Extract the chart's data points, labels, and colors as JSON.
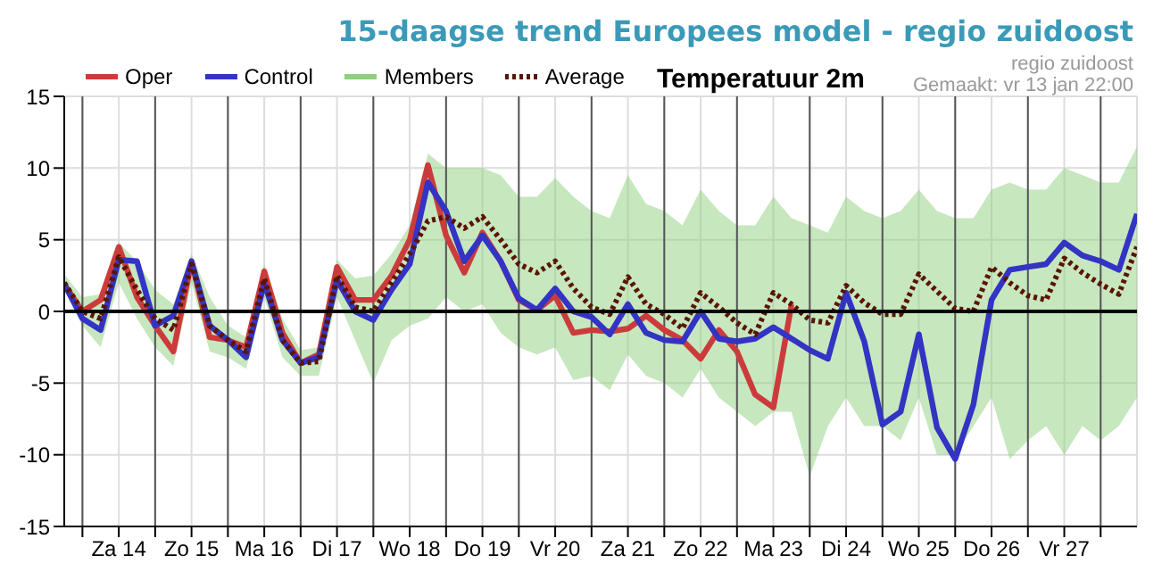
{
  "chart_data": {
    "type": "line",
    "title": "15-daagse trend Europees model - regio zuidoost",
    "subtitle": "Temperatuur 2m",
    "annotations": [
      "regio zuidoost",
      "Gemaakt: vr 13 jan 22:00"
    ],
    "x": [
      "--01-13T18:00",
      "--01-14T00:00",
      "--01-14T06:00",
      "--01-14T12:00",
      "--01-14T18:00",
      "--01-15T00:00",
      "--01-15T06:00",
      "--01-15T12:00",
      "--01-15T18:00",
      "--01-16T00:00",
      "--01-16T06:00",
      "--01-16T12:00",
      "--01-16T18:00",
      "--01-17T00:00",
      "--01-17T06:00",
      "--01-17T12:00",
      "--01-17T18:00",
      "--01-18T00:00",
      "--01-18T06:00",
      "--01-18T12:00",
      "--01-18T18:00",
      "--01-19T00:00",
      "--01-19T06:00",
      "--01-19T12:00",
      "--01-19T18:00",
      "--01-20T00:00",
      "--01-20T06:00",
      "--01-20T12:00",
      "--01-20T18:00",
      "--01-21T00:00",
      "--01-21T06:00",
      "--01-21T12:00",
      "--01-21T18:00",
      "--01-22T00:00",
      "--01-22T06:00",
      "--01-22T12:00",
      "--01-22T18:00",
      "--01-23T00:00",
      "--01-23T06:00",
      "--01-23T12:00",
      "--01-23T18:00",
      "--01-24T00:00",
      "--01-24T06:00",
      "--01-24T12:00",
      "--01-24T18:00",
      "--01-25T00:00",
      "--01-25T06:00",
      "--01-25T12:00",
      "--01-25T18:00",
      "--01-26T00:00",
      "--01-26T06:00",
      "--01-26T12:00",
      "--01-26T18:00",
      "--01-27T00:00",
      "--01-27T06:00",
      "--01-27T12:00",
      "--01-27T18:00",
      "--01-28T00:00",
      "--01-28T06:00",
      "--01-28T12:00"
    ],
    "series": [
      {
        "name": "Oper",
        "color": "#cc3b3b",
        "values": [
          1.9,
          0,
          0.8,
          4.5,
          1,
          -1,
          -2.8,
          3.5,
          -1.8,
          -2,
          -2.5,
          2.8,
          -1.5,
          -3.6,
          -3,
          3.1,
          0.8,
          0.8,
          2.5,
          5,
          10.2,
          5.3,
          2.7,
          5.5,
          3.5,
          0.8,
          0.1,
          1.1,
          -1.5,
          -1.3,
          -1.4,
          -1.2,
          -0.3,
          -1.3,
          -2,
          -3.3,
          -1.3,
          -2.8,
          -5.8,
          -6.7,
          0.5,
          null,
          null,
          null,
          null,
          null,
          null,
          null,
          null,
          null,
          null,
          null,
          null,
          null,
          null,
          null,
          null,
          null,
          null,
          null
        ]
      },
      {
        "name": "Control",
        "color": "#3333c4",
        "values": [
          1.9,
          -0.5,
          -1.3,
          3.6,
          3.5,
          -1,
          -0.3,
          3.5,
          -1,
          -2,
          -3.2,
          2,
          -2,
          -3.6,
          -3.2,
          2.2,
          0,
          -0.6,
          1.5,
          3.3,
          9,
          7,
          3.5,
          5.3,
          3.5,
          0.9,
          0.1,
          1.6,
          0,
          -0.4,
          -1.6,
          0.5,
          -1.5,
          -2,
          -2.1,
          0,
          -1.9,
          -2.1,
          -1.9,
          -1.1,
          -1.9,
          -2.7,
          -3.3,
          1.3,
          -2.1,
          -7.9,
          -7,
          -1.6,
          -8.1,
          -10.3,
          -6.5,
          0.8,
          2.9,
          3.1,
          3.3,
          4.8,
          3.9,
          3.5,
          2.9,
          6.8
        ]
      },
      {
        "name": "Members",
        "color": "#8fcf7f",
        "values": [
          null,
          null,
          null,
          null,
          null,
          null,
          null,
          null,
          null,
          null,
          null,
          null,
          null,
          null,
          null,
          null,
          null,
          null,
          null,
          null,
          null,
          null,
          null,
          null,
          null,
          null,
          null,
          null,
          null,
          null,
          null,
          null,
          null,
          null,
          null,
          null,
          null,
          null,
          null,
          null,
          null,
          null,
          null,
          null,
          null,
          null,
          null,
          null,
          null,
          null,
          null,
          null,
          null,
          null,
          null,
          null,
          null,
          null,
          null,
          null
        ],
        "lower": [
          1.5,
          -1,
          -2.5,
          2,
          -0.5,
          -2.5,
          -3.8,
          2,
          -2.8,
          -3.2,
          -4,
          1,
          -3.2,
          -4.5,
          -4.5,
          1,
          -2,
          -5,
          -2,
          -1,
          -0.5,
          1,
          0,
          0.5,
          -1.5,
          -2.5,
          -3,
          -2.5,
          -4.8,
          -4.5,
          -5.5,
          -3,
          -4.5,
          -5,
          -6,
          -4,
          -6,
          -7,
          -8,
          -7,
          -7,
          -11.5,
          -8,
          -6,
          -8,
          -8,
          -9,
          -6,
          -10,
          -10,
          -8,
          -6,
          -10.3,
          -9,
          -8,
          -10,
          -8,
          -9,
          -8,
          -6
        ],
        "upper": [
          2.6,
          1,
          1.2,
          4.8,
          3.5,
          1.5,
          0.5,
          4,
          1,
          -1,
          -1.8,
          3.3,
          -0.5,
          -2.7,
          -2.5,
          3.6,
          2.3,
          2.5,
          4,
          6,
          11,
          10,
          10,
          10,
          9.5,
          8,
          8,
          9.3,
          8,
          7,
          6.5,
          9.5,
          7.5,
          7,
          6,
          8.5,
          7,
          6,
          6,
          8,
          6.5,
          6,
          5.5,
          8,
          7,
          6.5,
          7,
          8.5,
          7,
          6.5,
          6.5,
          8.5,
          9,
          8.5,
          8.5,
          10,
          9.5,
          9,
          9,
          11.5
        ]
      },
      {
        "name": "Average",
        "color": "#5a1500",
        "line_style": "dotted",
        "values": [
          2,
          0,
          -0.5,
          3.8,
          1.5,
          -0.5,
          -1.3,
          3.3,
          -1,
          -2,
          -2.8,
          2.3,
          -2,
          -3.6,
          -3.5,
          2.5,
          0.3,
          0,
          2,
          4,
          6.3,
          6.6,
          5.8,
          6.6,
          5,
          3.3,
          2.7,
          3.5,
          1.6,
          0.3,
          -0.2,
          2.4,
          0.5,
          -0.2,
          -1.2,
          1.3,
          0.3,
          -0.8,
          -1.6,
          1.3,
          0.5,
          -0.6,
          -0.8,
          1.8,
          0.6,
          -0.2,
          -0.2,
          2.6,
          1.4,
          0.2,
          0,
          3.1,
          2,
          1.1,
          0.8,
          3.7,
          2.7,
          1.9,
          1.2,
          4.5
        ]
      }
    ],
    "xlim": [
      "--01-13T18:00",
      "--01-28T12:00"
    ],
    "xticks": [
      {
        "value": "--01-14T00:00",
        "label": null
      },
      {
        "value": "--01-14T12:00",
        "label": "Za 14"
      },
      {
        "value": "--01-15T00:00",
        "label": null
      },
      {
        "value": "--01-15T12:00",
        "label": "Zo 15"
      },
      {
        "value": "--01-16T00:00",
        "label": null
      },
      {
        "value": "--01-16T12:00",
        "label": "Ma 16"
      },
      {
        "value": "--01-17T00:00",
        "label": null
      },
      {
        "value": "--01-17T12:00",
        "label": "Di 17"
      },
      {
        "value": "--01-18T00:00",
        "label": null
      },
      {
        "value": "--01-18T12:00",
        "label": "Wo 18"
      },
      {
        "value": "--01-19T00:00",
        "label": null
      },
      {
        "value": "--01-19T12:00",
        "label": "Do 19"
      },
      {
        "value": "--01-20T00:00",
        "label": null
      },
      {
        "value": "--01-20T12:00",
        "label": "Vr 20"
      },
      {
        "value": "--01-21T00:00",
        "label": null
      },
      {
        "value": "--01-21T12:00",
        "label": "Za 21"
      },
      {
        "value": "--01-22T00:00",
        "label": null
      },
      {
        "value": "--01-22T12:00",
        "label": "Zo 22"
      },
      {
        "value": "--01-23T00:00",
        "label": null
      },
      {
        "value": "--01-23T12:00",
        "label": "Ma 23"
      },
      {
        "value": "--01-24T00:00",
        "label": null
      },
      {
        "value": "--01-24T12:00",
        "label": "Di 24"
      },
      {
        "value": "--01-25T00:00",
        "label": null
      },
      {
        "value": "--01-25T12:00",
        "label": "Wo 25"
      },
      {
        "value": "--01-26T00:00",
        "label": null
      },
      {
        "value": "--01-26T12:00",
        "label": "Do 26"
      },
      {
        "value": "--01-27T00:00",
        "label": null
      },
      {
        "value": "--01-27T12:00",
        "label": "Vr 27"
      },
      {
        "value": "--01-28T00:00",
        "label": null
      }
    ],
    "ylim": [
      -15,
      15
    ],
    "yticks": [
      -15,
      -10,
      -5,
      0,
      5,
      10,
      15
    ],
    "ref_lines": [
      {
        "axis": "y",
        "value": 0,
        "label": null,
        "color": "#000000"
      }
    ],
    "grid": true,
    "legend": "top left",
    "marker": "none"
  }
}
